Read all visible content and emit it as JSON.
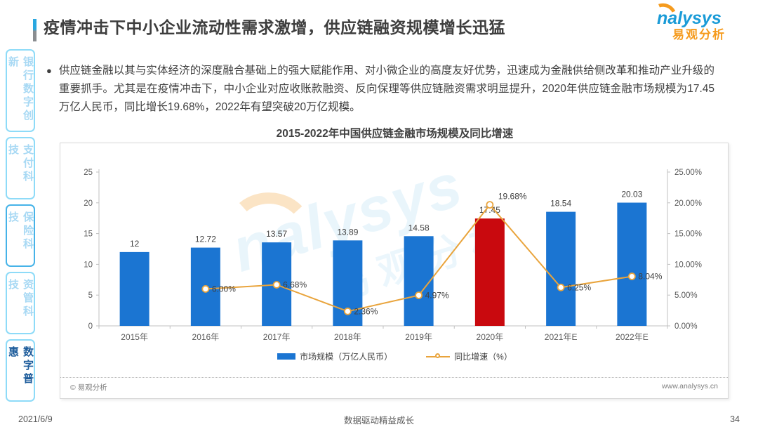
{
  "header": {
    "title": "疫情冲击下中小企业流动性需求激增，供应链融资规模增长迅猛",
    "logo": {
      "brand_en": "nalysys",
      "brand_cn": "易观分析"
    }
  },
  "sidebar": {
    "items": [
      {
        "label": "银行数字创新",
        "active": false
      },
      {
        "label": "支付科技",
        "active": false
      },
      {
        "label": "保险科技",
        "active": false
      },
      {
        "label": "资管科技",
        "active": false
      },
      {
        "label": "数字普惠",
        "active": true
      }
    ]
  },
  "body": {
    "bullet": "●",
    "text": "供应链金融以其与实体经济的深度融合基础上的强大赋能作用、对小微企业的高度友好优势，迅速成为金融供给侧改革和推动产业升级的重要抓手。尤其是在疫情冲击下，中小企业对应收账款融资、反向保理等供应链融资需求明显提升，2020年供应链金融市场规模为17.45万亿人民币，同比增长19.68%，2022年有望突破20万亿规模。"
  },
  "chart_data": {
    "type": "bar+line",
    "title": "2015-2022年中国供应链金融市场规模及同比增速",
    "categories": [
      "2015年",
      "2016年",
      "2017年",
      "2018年",
      "2019年",
      "2020年",
      "2021年E",
      "2022年E"
    ],
    "series": [
      {
        "name": "市场规模（万亿人民币）",
        "type": "bar",
        "values": [
          12,
          12.72,
          13.57,
          13.89,
          14.58,
          17.45,
          18.54,
          20.03
        ],
        "labels": [
          "12",
          "12.72",
          "13.57",
          "13.89",
          "14.58",
          "17.45",
          "18.54",
          "20.03"
        ]
      },
      {
        "name": "同比增速（%）",
        "type": "line",
        "values": [
          null,
          6.0,
          6.68,
          2.36,
          4.97,
          19.68,
          6.25,
          8.04
        ],
        "labels": [
          "",
          "6.00%",
          "6.68%",
          "2.36%",
          "4.97%",
          "19.68%",
          "6.25%",
          "8.04%"
        ]
      }
    ],
    "highlight_index": 5,
    "left_axis": {
      "min": 0,
      "max": 25,
      "ticks": [
        "0",
        "5",
        "10",
        "15",
        "20",
        "25"
      ]
    },
    "right_axis": {
      "min": 0,
      "max": 25,
      "ticks": [
        "0.00%",
        "5.00%",
        "10.00%",
        "15.00%",
        "20.00%",
        "25.00%"
      ]
    },
    "colors": {
      "bar": "#1b75d2",
      "bar_highlight": "#c9090e",
      "line": "#e9a43c",
      "axis": "#c0c0c0",
      "tick_text": "#595959",
      "label_text": "#404040"
    },
    "grid": false,
    "legend_position": "bottom"
  },
  "watermark": {
    "en": "nalysys",
    "cn": "易观分析"
  },
  "chart_footer": {
    "copyright": "© 易观分析",
    "website": "www.analysys.cn"
  },
  "footer": {
    "date": "2021/6/9",
    "slogan": "数据驱动精益成长",
    "page": "34"
  }
}
